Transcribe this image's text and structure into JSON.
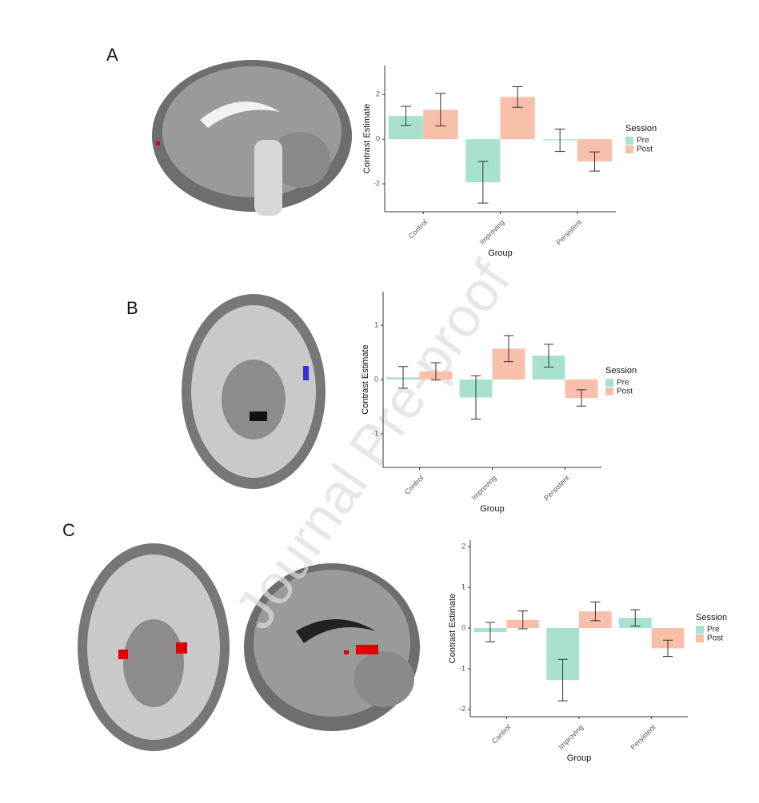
{
  "watermark": "Journal Pre-proof",
  "chart_data": [
    {
      "type": "bar",
      "panel": "A",
      "categories": [
        "Control",
        "Improving",
        "Persistent"
      ],
      "x_label": "Group",
      "y_label": "Contrast Estimate",
      "legend_title": "Session",
      "ylim": [
        -3.25,
        3.3
      ],
      "yticks": [
        -2,
        0,
        2
      ],
      "series": [
        {
          "name": "Pre",
          "color": "#a8e2cf",
          "values": [
            1.04,
            -1.93,
            -0.05
          ],
          "errors": [
            0.43,
            0.93,
            0.5
          ]
        },
        {
          "name": "Post",
          "color": "#f8bfab",
          "values": [
            1.32,
            1.89,
            -1.0
          ],
          "errors": [
            0.73,
            0.46,
            0.43
          ]
        }
      ]
    },
    {
      "type": "bar",
      "panel": "B",
      "categories": [
        "Control",
        "Improving",
        "Persistent"
      ],
      "x_label": "Group",
      "y_label": "Contrast Estimate",
      "legend_title": "Session",
      "ylim": [
        -1.62,
        1.62
      ],
      "yticks": [
        -1,
        0,
        1
      ],
      "series": [
        {
          "name": "Pre",
          "color": "#a8e2cf",
          "values": [
            0.04,
            -0.33,
            0.44
          ],
          "errors": [
            0.2,
            0.4,
            0.21
          ]
        },
        {
          "name": "Post",
          "color": "#f8bfab",
          "values": [
            0.15,
            0.57,
            -0.34
          ],
          "errors": [
            0.16,
            0.24,
            0.15
          ]
        }
      ]
    },
    {
      "type": "bar",
      "panel": "C",
      "categories": [
        "Control",
        "Improving",
        "Persistent"
      ],
      "x_label": "Group",
      "y_label": "Contrast Estimate",
      "legend_title": "Session",
      "ylim": [
        -2.18,
        2.16
      ],
      "yticks": [
        -2,
        -1,
        0,
        1,
        2
      ],
      "series": [
        {
          "name": "Pre",
          "color": "#a8e2cf",
          "values": [
            -0.1,
            -1.28,
            0.25
          ],
          "errors": [
            0.24,
            0.51,
            0.2
          ]
        },
        {
          "name": "Post",
          "color": "#f8bfab",
          "values": [
            0.2,
            0.41,
            -0.5
          ],
          "errors": [
            0.22,
            0.23,
            0.2
          ]
        }
      ]
    }
  ]
}
